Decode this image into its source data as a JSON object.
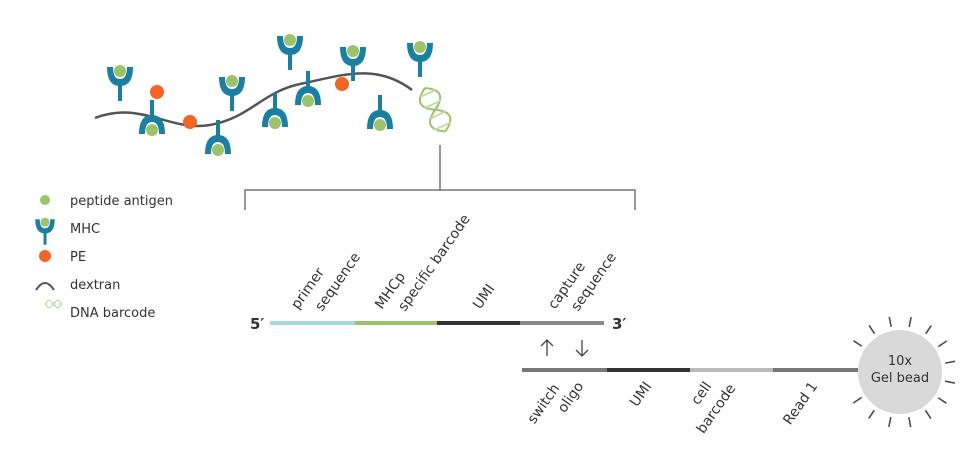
{
  "legend": {
    "items": [
      {
        "label": "peptide antigen"
      },
      {
        "label": "MHC"
      },
      {
        "label": "PE"
      },
      {
        "label": "dextran"
      },
      {
        "label": "DNA barcode"
      }
    ]
  },
  "oligo": {
    "prime5": "5′",
    "prime3": "3′",
    "segments": [
      {
        "lines": [
          "primer",
          "sequence"
        ]
      },
      {
        "lines": [
          "MHCp",
          "specific barcode"
        ]
      },
      {
        "lines": [
          "UMI"
        ]
      },
      {
        "lines": [
          "capture",
          "sequence"
        ]
      }
    ]
  },
  "bead_strand": {
    "segments": [
      {
        "lines": [
          "switch",
          "oligo"
        ]
      },
      {
        "lines": [
          "UMI"
        ]
      },
      {
        "lines": [
          "cell",
          "barcode"
        ]
      },
      {
        "lines": [
          "Read 1"
        ]
      }
    ]
  },
  "bead": {
    "lines": [
      "10x",
      "Gel bead"
    ]
  }
}
